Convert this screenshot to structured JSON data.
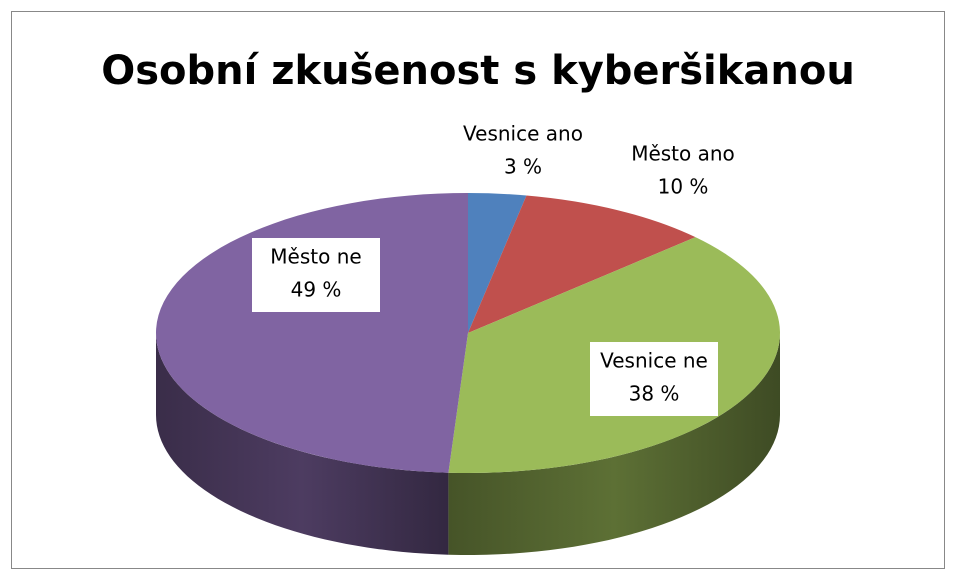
{
  "chart_data": {
    "type": "pie",
    "title": "Osobní zkušenost s kyberšikanou",
    "categories": [
      "Vesnice ano",
      "Město ano",
      "Vesnice ne",
      "Město ne"
    ],
    "values": [
      3,
      10,
      38,
      49
    ],
    "value_labels": [
      "3 %",
      "10 %",
      "38 %",
      "49 %"
    ],
    "colors": [
      "#4f81bd",
      "#c0504d",
      "#9bbb59",
      "#8064a2"
    ]
  }
}
